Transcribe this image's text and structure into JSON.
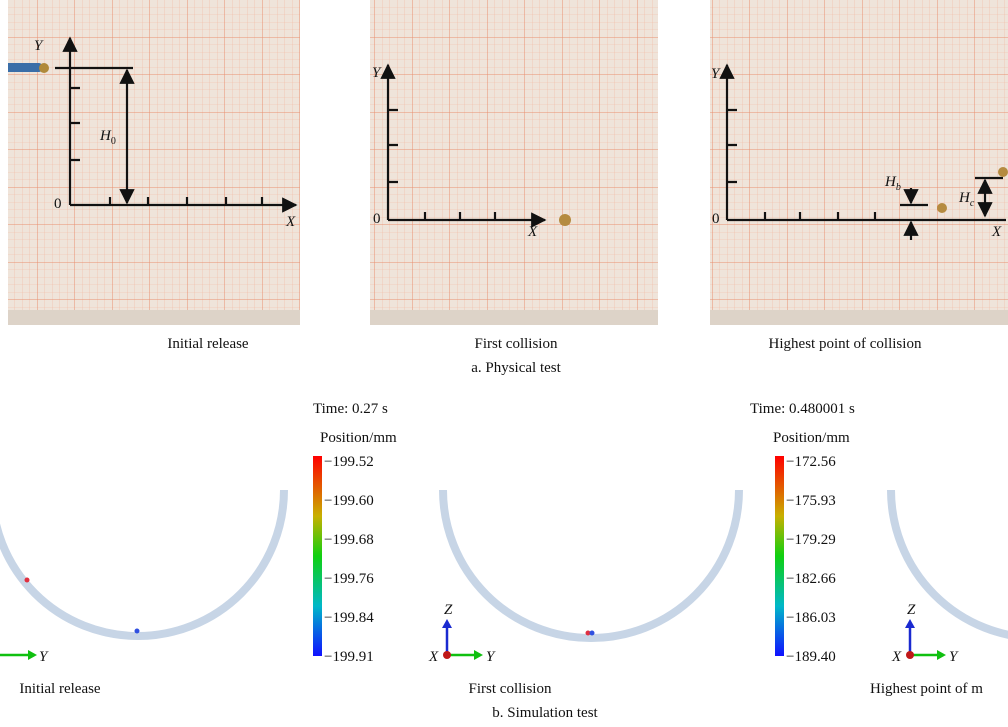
{
  "physical": {
    "caption": "a. Physical test",
    "panels": [
      {
        "caption": "Initial release",
        "y_axis": "Y",
        "x_axis": "X",
        "origin": "0",
        "height_label": {
          "symbol": "H",
          "subscript": "0"
        }
      },
      {
        "caption": "First collision",
        "y_axis": "Y",
        "x_axis": "X",
        "origin": "0"
      },
      {
        "caption": "Highest point of collision",
        "y_axis": "Y",
        "x_axis": "X",
        "origin": "0",
        "height_labels": [
          {
            "symbol": "H",
            "subscript": "b"
          },
          {
            "symbol": "H",
            "subscript": "c"
          }
        ]
      }
    ]
  },
  "simulation": {
    "caption": "b. Simulation test",
    "panels": [
      {
        "caption": "Initial release",
        "axes": {
          "y": "Y"
        }
      },
      {
        "caption": "First collision",
        "time": "Time: 0.27 s",
        "legend_title": "Position/mm",
        "legend_ticks": [
          "−199.52",
          "−199.60",
          "−199.68",
          "−199.76",
          "−199.84",
          "−199.91"
        ],
        "axes": {
          "z": "Z",
          "x": "X",
          "y": "Y"
        }
      },
      {
        "caption": "Highest point of m",
        "time": "Time: 0.480001 s",
        "legend_title": "Position/mm",
        "legend_ticks": [
          "−172.56",
          "−175.93",
          "−179.29",
          "−182.66",
          "−186.03",
          "−189.40"
        ],
        "axes": {
          "z": "Z",
          "x": "X",
          "y": "Y"
        }
      }
    ]
  }
}
